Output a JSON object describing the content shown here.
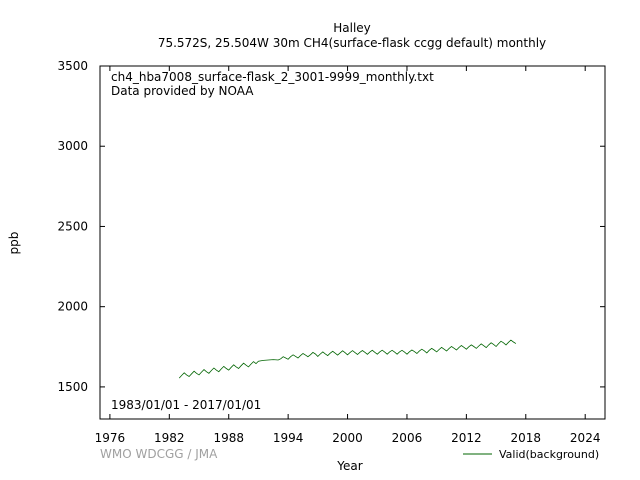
{
  "chart_data": {
    "type": "line",
    "title": "Halley",
    "subtitle": "75.572S, 25.504W 30m    CH4(surface-flask ccgg default) monthly",
    "xlabel": "Year",
    "ylabel": "ppb",
    "xlim": [
      1975.0,
      2026.0
    ],
    "ylim": [
      1300,
      3500
    ],
    "x_ticks": [
      1976,
      1982,
      1988,
      1994,
      2000,
      2006,
      2012,
      2018,
      2024
    ],
    "y_ticks": [
      1500,
      2000,
      2500,
      3000,
      3500
    ],
    "grid": false,
    "legend_position": "bottom-right",
    "annotations": {
      "filename": "ch4_hba7008_surface-flask_2_3001-9999_monthly.txt",
      "provider": "Data provided by NOAA",
      "date_range": "1983/01/01 - 2017/01/01",
      "credit": "WMO WDCGG / JMA"
    },
    "series": [
      {
        "name": "Valid(background)",
        "color": "#006400",
        "x": [
          1983.0,
          1983.25,
          1983.5,
          1983.75,
          1984.0,
          1984.25,
          1984.5,
          1984.75,
          1985.0,
          1985.25,
          1985.5,
          1985.75,
          1986.0,
          1986.25,
          1986.5,
          1986.75,
          1987.0,
          1987.25,
          1987.5,
          1987.75,
          1988.0,
          1988.25,
          1988.5,
          1988.75,
          1989.0,
          1989.25,
          1989.5,
          1989.75,
          1990.0,
          1990.25,
          1990.5,
          1990.75,
          1991.0,
          1991.5,
          1992.0,
          1992.5,
          1993.0,
          1993.25,
          1993.5,
          1993.75,
          1994.0,
          1994.25,
          1994.5,
          1994.75,
          1995.0,
          1995.25,
          1995.5,
          1995.75,
          1996.0,
          1996.25,
          1996.5,
          1996.75,
          1997.0,
          1997.25,
          1997.5,
          1997.75,
          1998.0,
          1998.25,
          1998.5,
          1998.75,
          1999.0,
          1999.25,
          1999.5,
          1999.75,
          2000.0,
          2000.25,
          2000.5,
          2000.75,
          2001.0,
          2001.25,
          2001.5,
          2001.75,
          2002.0,
          2002.25,
          2002.5,
          2002.75,
          2003.0,
          2003.25,
          2003.5,
          2003.75,
          2004.0,
          2004.25,
          2004.5,
          2004.75,
          2005.0,
          2005.25,
          2005.5,
          2005.75,
          2006.0,
          2006.25,
          2006.5,
          2006.75,
          2007.0,
          2007.25,
          2007.5,
          2007.75,
          2008.0,
          2008.25,
          2008.5,
          2008.75,
          2009.0,
          2009.25,
          2009.5,
          2009.75,
          2010.0,
          2010.25,
          2010.5,
          2010.75,
          2011.0,
          2011.25,
          2011.5,
          2011.75,
          2012.0,
          2012.25,
          2012.5,
          2012.75,
          2013.0,
          2013.25,
          2013.5,
          2013.75,
          2014.0,
          2014.25,
          2014.5,
          2014.75,
          2015.0,
          2015.25,
          2015.5,
          2015.75,
          2016.0,
          2016.25,
          2016.5,
          2016.75,
          2017.0
        ],
        "y": [
          1555,
          1572,
          1588,
          1575,
          1565,
          1582,
          1598,
          1585,
          1575,
          1592,
          1608,
          1595,
          1585,
          1602,
          1618,
          1605,
          1595,
          1612,
          1628,
          1615,
          1605,
          1622,
          1638,
          1625,
          1615,
          1632,
          1648,
          1635,
          1625,
          1642,
          1658,
          1645,
          1660,
          1665,
          1668,
          1670,
          1668,
          1675,
          1688,
          1680,
          1672,
          1688,
          1700,
          1690,
          1680,
          1695,
          1708,
          1698,
          1688,
          1700,
          1715,
          1705,
          1690,
          1705,
          1718,
          1706,
          1695,
          1710,
          1722,
          1710,
          1698,
          1712,
          1725,
          1713,
          1700,
          1714,
          1726,
          1714,
          1702,
          1716,
          1727,
          1716,
          1703,
          1717,
          1728,
          1716,
          1704,
          1718,
          1729,
          1717,
          1704,
          1718,
          1728,
          1717,
          1704,
          1718,
          1728,
          1717,
          1704,
          1719,
          1730,
          1720,
          1708,
          1723,
          1735,
          1725,
          1712,
          1728,
          1740,
          1730,
          1718,
          1733,
          1746,
          1735,
          1724,
          1739,
          1752,
          1741,
          1730,
          1745,
          1758,
          1747,
          1735,
          1750,
          1762,
          1752,
          1740,
          1755,
          1768,
          1757,
          1745,
          1762,
          1775,
          1765,
          1752,
          1770,
          1785,
          1775,
          1762,
          1778,
          1792,
          1780,
          1770
        ]
      }
    ]
  }
}
